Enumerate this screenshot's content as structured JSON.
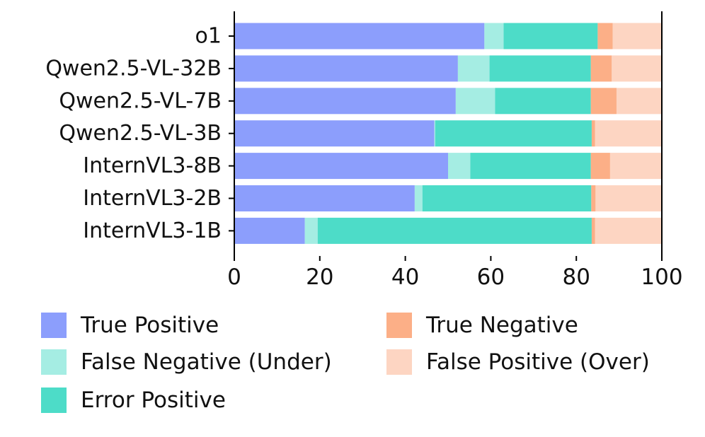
{
  "chart_data": {
    "type": "bar",
    "orientation": "horizontal",
    "stacked": true,
    "title": "",
    "xlabel": "",
    "ylabel": "",
    "xlim": [
      0,
      100
    ],
    "xticks": [
      "0",
      "20",
      "40",
      "60",
      "80",
      "100"
    ],
    "categories": [
      "o1",
      "Qwen2.5-VL-32B",
      "Qwen2.5-VL-7B",
      "Qwen2.5-VL-3B",
      "InternVL3-8B",
      "InternVL3-2B",
      "InternVL3-1B"
    ],
    "series": [
      {
        "name": "True Positive",
        "color": "#8c9efc",
        "values": [
          58.5,
          52.3,
          51.8,
          46.8,
          50.0,
          42.2,
          16.5
        ]
      },
      {
        "name": "False Negative (Under)",
        "color": "#a5ede3",
        "values": [
          4.5,
          7.4,
          9.2,
          0.2,
          5.2,
          1.8,
          3.0
        ]
      },
      {
        "name": "Error Positive",
        "color": "#4ddcc8",
        "values": [
          22.0,
          23.7,
          22.4,
          36.6,
          28.2,
          39.5,
          64.1
        ]
      },
      {
        "name": "True Negative",
        "color": "#fcaf87",
        "values": [
          3.5,
          4.9,
          6.0,
          0.8,
          4.5,
          1.0,
          0.8
        ]
      },
      {
        "name": "False Positive (Over)",
        "color": "#fdd5c2",
        "values": [
          11.5,
          11.7,
          10.6,
          15.6,
          12.1,
          15.5,
          15.6
        ]
      }
    ],
    "legend_position": "bottom"
  }
}
